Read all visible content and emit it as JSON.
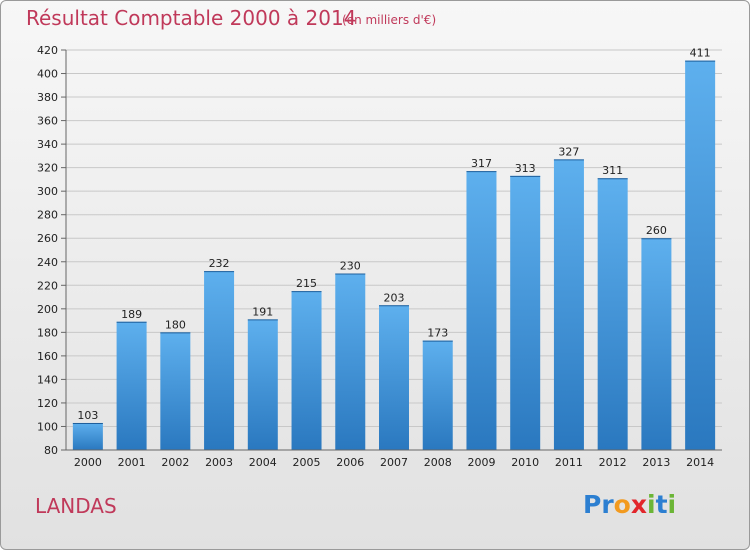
{
  "chart_data": {
    "type": "bar",
    "title": "Résultat Comptable 2000 à 2014",
    "subtitle": "(en milliers d'€)",
    "categories": [
      "2000",
      "2001",
      "2002",
      "2003",
      "2004",
      "2005",
      "2006",
      "2007",
      "2008",
      "2009",
      "2010",
      "2011",
      "2012",
      "2013",
      "2014"
    ],
    "values": [
      103,
      189,
      180,
      232,
      191,
      215,
      230,
      203,
      173,
      317,
      313,
      327,
      311,
      260,
      411
    ],
    "ylim": [
      80,
      420
    ],
    "yticks": [
      80,
      100,
      120,
      140,
      160,
      180,
      200,
      220,
      240,
      260,
      280,
      300,
      320,
      340,
      360,
      380,
      400,
      420
    ],
    "grid": true,
    "bar_color": "#3d8fd6",
    "title_color": "#c0395a"
  },
  "footer": {
    "commune": "LANDAS",
    "logo_letters": [
      {
        "ch": "P",
        "color": "#2c7fd1"
      },
      {
        "ch": "r",
        "color": "#2c7fd1"
      },
      {
        "ch": "o",
        "color": "#f29a1f"
      },
      {
        "ch": "x",
        "color": "#e2262b"
      },
      {
        "ch": "i",
        "color": "#6bb536"
      },
      {
        "ch": "t",
        "color": "#2c7fd1"
      },
      {
        "ch": "i",
        "color": "#6bb536"
      }
    ]
  }
}
